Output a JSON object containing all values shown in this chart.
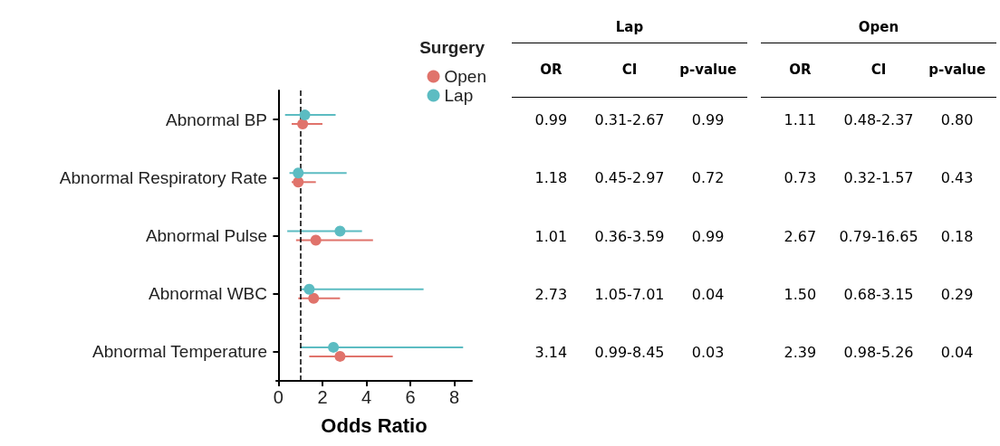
{
  "chart_data": [
    {
      "type": "scatter",
      "orientation": "horizontal",
      "xlabel": "Odds Ratio",
      "legend_title": "Surgery",
      "legend": "top right",
      "marker": "circle",
      "grid": false,
      "categories": [
        "Abnormal BP",
        "Abnormal Respiratory Rate",
        "Abnormal Pulse",
        "Abnormal WBC",
        "Abnormal Temperature"
      ],
      "xlim": [
        -0.1,
        8.8
      ],
      "xticks": [
        0,
        2,
        4,
        6,
        8
      ],
      "series": [
        {
          "name": "Open",
          "color": "#e0736b",
          "values": [
            1.1,
            0.9,
            1.7,
            1.6,
            2.8
          ],
          "errors": [
            [
              0.6,
              2.0
            ],
            [
              0.6,
              1.7
            ],
            [
              0.8,
              4.3
            ],
            [
              0.9,
              2.8
            ],
            [
              1.4,
              5.2
            ]
          ]
        },
        {
          "name": "Lap",
          "color": "#5cbcc2",
          "values": [
            1.2,
            0.9,
            2.8,
            1.4,
            2.5
          ],
          "errors": [
            [
              0.3,
              2.6
            ],
            [
              0.5,
              3.1
            ],
            [
              0.4,
              3.8
            ],
            [
              1.0,
              6.6
            ],
            [
              1.0,
              8.4
            ]
          ]
        }
      ],
      "ref_lines": [
        {
          "axis": "x",
          "value": 1,
          "color": "#000000",
          "line_style": "dashed"
        }
      ]
    },
    {
      "type": "other",
      "annotations": [
        "Lap",
        "Open"
      ],
      "categories": [
        "OR",
        "CI",
        "p-value",
        "OR",
        "CI",
        "p-value"
      ],
      "cell_labels": [
        [
          "0.99",
          "0.31-2.67",
          "0.99",
          "1.11",
          "0.48-2.37",
          "0.80"
        ],
        [
          "1.18",
          "0.45-2.97",
          "0.72",
          "0.73",
          "0.32-1.57",
          "0.43"
        ],
        [
          "1.01",
          "0.36-3.59",
          "0.99",
          "2.67",
          "0.79-16.65",
          "0.18"
        ],
        [
          "2.73",
          "1.05-7.01",
          "0.04",
          "1.50",
          "0.68-3.15",
          "0.29"
        ],
        [
          "3.14",
          "0.99-8.45",
          "0.03",
          "2.39",
          "0.98-5.26",
          "0.04"
        ]
      ]
    }
  ]
}
